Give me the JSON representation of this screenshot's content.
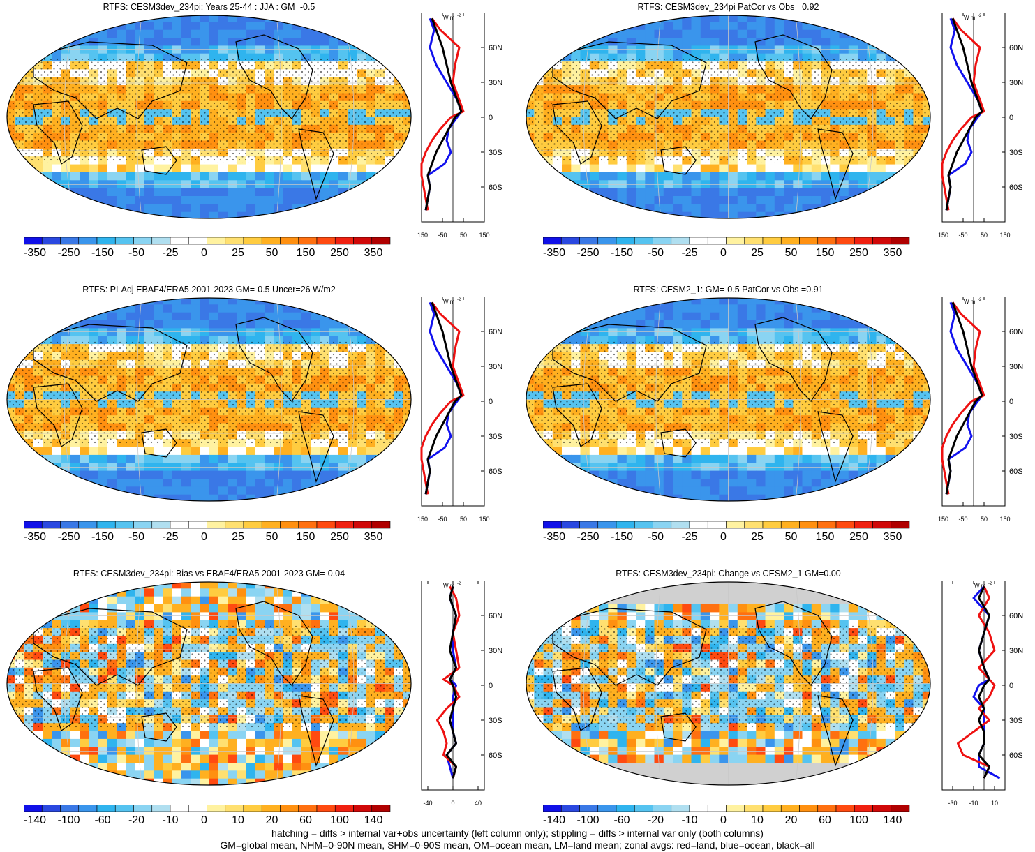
{
  "panels": [
    {
      "title": "RTFS: CESM3dev_234pi: Years 25-44 : JJA : GM=-0.5",
      "colorbar_labels": [
        "-350",
        "-250",
        "-150",
        "-50",
        "-25",
        "0",
        "25",
        "50",
        "150",
        "250",
        "350"
      ],
      "zonal_x_ticks": [
        "-150",
        "-50",
        "50",
        "150"
      ],
      "zonal_xlim": [
        -150,
        150
      ],
      "zonal_unit": "W m",
      "zonal_unit_sup": "-2",
      "zonal_lat_ticks": [
        "60N",
        "30N",
        "0",
        "30S",
        "60S"
      ]
    },
    {
      "title": "RTFS: CESM3dev_234pi PatCor vs Obs =0.92",
      "colorbar_labels": [
        "-350",
        "-250",
        "-150",
        "-50",
        "-25",
        "0",
        "25",
        "50",
        "150",
        "250",
        "350"
      ],
      "zonal_x_ticks": [
        "-150",
        "-50",
        "50",
        "150"
      ],
      "zonal_xlim": [
        -150,
        150
      ],
      "zonal_unit": "W m",
      "zonal_unit_sup": "-2",
      "zonal_lat_ticks": [
        "60N",
        "30N",
        "0",
        "30S",
        "60S"
      ]
    },
    {
      "title": "RTFS: PI-Adj EBAF4/ERA5 2001-2023 GM=-0.5 Uncer=26 W/m2",
      "colorbar_labels": [
        "-350",
        "-250",
        "-150",
        "-50",
        "-25",
        "0",
        "25",
        "50",
        "150",
        "250",
        "350"
      ],
      "zonal_x_ticks": [
        "-150",
        "-50",
        "50",
        "150"
      ],
      "zonal_xlim": [
        -150,
        150
      ],
      "zonal_unit": "W m",
      "zonal_unit_sup": "-2",
      "zonal_lat_ticks": [
        "60N",
        "30N",
        "0",
        "30S",
        "60S"
      ]
    },
    {
      "title": "RTFS: CESM2_1: GM=-0.5 PatCor vs Obs =0.91",
      "colorbar_labels": [
        "-350",
        "-250",
        "-150",
        "-50",
        "-25",
        "0",
        "25",
        "50",
        "150",
        "250",
        "350"
      ],
      "zonal_x_ticks": [
        "-150",
        "-50",
        "50",
        "150"
      ],
      "zonal_xlim": [
        -150,
        150
      ],
      "zonal_unit": "W m",
      "zonal_unit_sup": "-2",
      "zonal_lat_ticks": [
        "60N",
        "30N",
        "0",
        "30S",
        "60S"
      ]
    },
    {
      "title": "RTFS: CESM3dev_234pi: Bias vs EBAF4/ERA5 2001-2023 GM=-0.04",
      "colorbar_labels": [
        "-140",
        "-100",
        "-60",
        "-20",
        "-10",
        "0",
        "10",
        "20",
        "60",
        "100",
        "140"
      ],
      "zonal_x_ticks": [
        "-40",
        "0",
        "40"
      ],
      "zonal_xlim": [
        -50,
        50
      ],
      "zonal_unit": "W m",
      "zonal_unit_sup": "-2",
      "zonal_lat_ticks": [
        "60N",
        "30N",
        "0",
        "30S",
        "60S"
      ]
    },
    {
      "title": "RTFS: CESM3dev_234pi: Change vs CESM2_1 GM=0.00",
      "colorbar_labels": [
        "-140",
        "-100",
        "-60",
        "-20",
        "-10",
        "0",
        "10",
        "20",
        "60",
        "100",
        "140"
      ],
      "zonal_x_ticks": [
        "-30",
        "-10",
        "10"
      ],
      "zonal_xlim": [
        -40,
        20
      ],
      "zonal_unit": "W m",
      "zonal_unit_sup": "-2",
      "zonal_lat_ticks": [
        "60N",
        "30N",
        "0",
        "30S",
        "60S"
      ]
    }
  ],
  "colorbar_colors": [
    "#1010e8",
    "#2a48e0",
    "#3a78e6",
    "#3a95ec",
    "#2fb4ee",
    "#55c3f0",
    "#8ad4f2",
    "#b0dff0",
    "#ffffff",
    "#ffffff",
    "#fff2a0",
    "#ffe070",
    "#ffcc40",
    "#ffb020",
    "#ff9010",
    "#ff7010",
    "#ff4a10",
    "#f02010",
    "#d00808",
    "#b00000"
  ],
  "legend_colors": {
    "land": "#ee1111",
    "ocean": "#1111ee",
    "all": "#000000"
  },
  "footnote": {
    "line1": "hatching = diffs > internal var+obs uncertainty (left column only); stippling = diffs > internal var only (both columns)",
    "line2": "GM=global mean, NHM=0-90N mean, SHM=0-90S mean, OM=ocean mean, LM=land mean; zonal avgs: red=land, blue=ocean, black=all"
  },
  "chart_data": [
    {
      "type": "heatmap",
      "title": "RTFS: CESM3dev_234pi: Years 25-44 : JJA : GM=-0.5",
      "colorbar": [
        -350,
        -250,
        -150,
        -50,
        -25,
        0,
        25,
        50,
        150,
        250,
        350
      ],
      "zonal": {
        "lat": [
          85,
          75,
          60,
          45,
          30,
          15,
          5,
          0,
          -10,
          -20,
          -30,
          -40,
          -50,
          -60,
          -70,
          -80
        ],
        "all": [
          -100,
          -80,
          -50,
          -30,
          -10,
          20,
          40,
          10,
          -20,
          -50,
          -80,
          -100,
          -120,
          -110,
          -120,
          -130
        ],
        "land": [
          -100,
          -60,
          30,
          10,
          0,
          30,
          50,
          -10,
          -60,
          -100,
          -130,
          -150,
          -150,
          -140,
          -130,
          -120
        ],
        "ocean": [
          -110,
          -90,
          -110,
          -80,
          -30,
          20,
          40,
          20,
          -20,
          -30,
          -10,
          -40,
          -120,
          -110,
          -120,
          -130
        ]
      }
    },
    {
      "type": "heatmap",
      "title": "RTFS: CESM3dev_234pi PatCor vs Obs =0.92",
      "colorbar": [
        -350,
        -250,
        -150,
        -50,
        -25,
        0,
        25,
        50,
        150,
        250,
        350
      ],
      "zonal": {
        "lat": [
          85,
          75,
          60,
          45,
          30,
          15,
          5,
          0,
          -10,
          -20,
          -30,
          -40,
          -50,
          -60,
          -70,
          -80
        ],
        "all": [
          -100,
          -80,
          -50,
          -30,
          -10,
          20,
          40,
          10,
          -20,
          -50,
          -80,
          -100,
          -120,
          -110,
          -120,
          -130
        ],
        "land": [
          -100,
          -60,
          30,
          10,
          0,
          30,
          50,
          -10,
          -60,
          -100,
          -130,
          -150,
          -150,
          -140,
          -130,
          -120
        ],
        "ocean": [
          -110,
          -90,
          -110,
          -80,
          -30,
          20,
          40,
          20,
          -20,
          -30,
          -10,
          -40,
          -120,
          -110,
          -120,
          -130
        ]
      }
    },
    {
      "type": "heatmap",
      "title": "RTFS: PI-Adj EBAF4/ERA5 2001-2023 GM=-0.5 Uncer=26 W/m2",
      "colorbar": [
        -350,
        -250,
        -150,
        -50,
        -25,
        0,
        25,
        50,
        150,
        250,
        350
      ],
      "zonal": {
        "lat": [
          85,
          75,
          60,
          45,
          30,
          15,
          5,
          0,
          -10,
          -20,
          -30,
          -40,
          -50,
          -60,
          -70,
          -80
        ],
        "all": [
          -100,
          -80,
          -50,
          -30,
          -10,
          20,
          40,
          10,
          -20,
          -50,
          -80,
          -100,
          -120,
          -110,
          -120,
          -130
        ],
        "land": [
          -100,
          -60,
          30,
          10,
          0,
          30,
          50,
          -10,
          -60,
          -100,
          -130,
          -150,
          -150,
          -140,
          -130,
          -120
        ],
        "ocean": [
          -110,
          -90,
          -110,
          -80,
          -30,
          20,
          40,
          20,
          -20,
          -30,
          -10,
          -40,
          -120,
          -110,
          -120,
          -130
        ]
      }
    },
    {
      "type": "heatmap",
      "title": "RTFS: CESM2_1: GM=-0.5 PatCor vs Obs =0.91",
      "colorbar": [
        -350,
        -250,
        -150,
        -50,
        -25,
        0,
        25,
        50,
        150,
        250,
        350
      ],
      "zonal": {
        "lat": [
          85,
          75,
          60,
          45,
          30,
          15,
          5,
          0,
          -10,
          -20,
          -30,
          -40,
          -50,
          -60,
          -70,
          -80
        ],
        "all": [
          -100,
          -80,
          -50,
          -30,
          -10,
          20,
          40,
          10,
          -20,
          -50,
          -80,
          -100,
          -120,
          -110,
          -120,
          -130
        ],
        "land": [
          -100,
          -60,
          30,
          10,
          0,
          30,
          50,
          -10,
          -60,
          -100,
          -130,
          -150,
          -150,
          -140,
          -130,
          -120
        ],
        "ocean": [
          -110,
          -90,
          -110,
          -80,
          -30,
          20,
          40,
          20,
          -20,
          -30,
          -10,
          -40,
          -120,
          -110,
          -120,
          -130
        ]
      }
    },
    {
      "type": "heatmap",
      "title": "RTFS: CESM3dev_234pi: Bias vs EBAF4/ERA5 2001-2023 GM=-0.04",
      "colorbar": [
        -140,
        -100,
        -60,
        -20,
        -10,
        0,
        10,
        20,
        60,
        100,
        140
      ],
      "zonal": {
        "lat": [
          85,
          75,
          60,
          45,
          30,
          15,
          5,
          0,
          -10,
          -20,
          -30,
          -40,
          -50,
          -60,
          -70,
          -80
        ],
        "all": [
          0,
          -5,
          5,
          0,
          -5,
          5,
          -5,
          0,
          5,
          0,
          -5,
          0,
          5,
          -10,
          5,
          0
        ],
        "land": [
          -5,
          5,
          10,
          0,
          5,
          10,
          -15,
          0,
          10,
          -10,
          -25,
          -15,
          -10,
          -15,
          5,
          0
        ],
        "ocean": [
          0,
          -5,
          5,
          0,
          0,
          5,
          -5,
          5,
          0,
          0,
          0,
          0,
          5,
          -10,
          -5,
          0
        ]
      }
    },
    {
      "type": "heatmap",
      "title": "RTFS: CESM3dev_234pi: Change vs CESM2_1 GM=0.00",
      "colorbar": [
        -140,
        -100,
        -60,
        -20,
        -10,
        0,
        10,
        20,
        60,
        100,
        140
      ],
      "zonal": {
        "lat": [
          85,
          75,
          60,
          45,
          30,
          15,
          5,
          0,
          -10,
          -20,
          -30,
          -40,
          -50,
          -60,
          -70,
          -80
        ],
        "all": [
          0,
          -5,
          5,
          0,
          -5,
          0,
          5,
          0,
          -5,
          0,
          -5,
          0,
          0,
          -5,
          5,
          0
        ],
        "land": [
          0,
          5,
          -5,
          5,
          10,
          -5,
          5,
          10,
          5,
          -5,
          5,
          -10,
          -25,
          -20,
          5,
          0
        ],
        "ocean": [
          0,
          -10,
          5,
          0,
          -5,
          0,
          5,
          -5,
          -10,
          0,
          0,
          0,
          0,
          -5,
          -5,
          15
        ]
      }
    }
  ]
}
